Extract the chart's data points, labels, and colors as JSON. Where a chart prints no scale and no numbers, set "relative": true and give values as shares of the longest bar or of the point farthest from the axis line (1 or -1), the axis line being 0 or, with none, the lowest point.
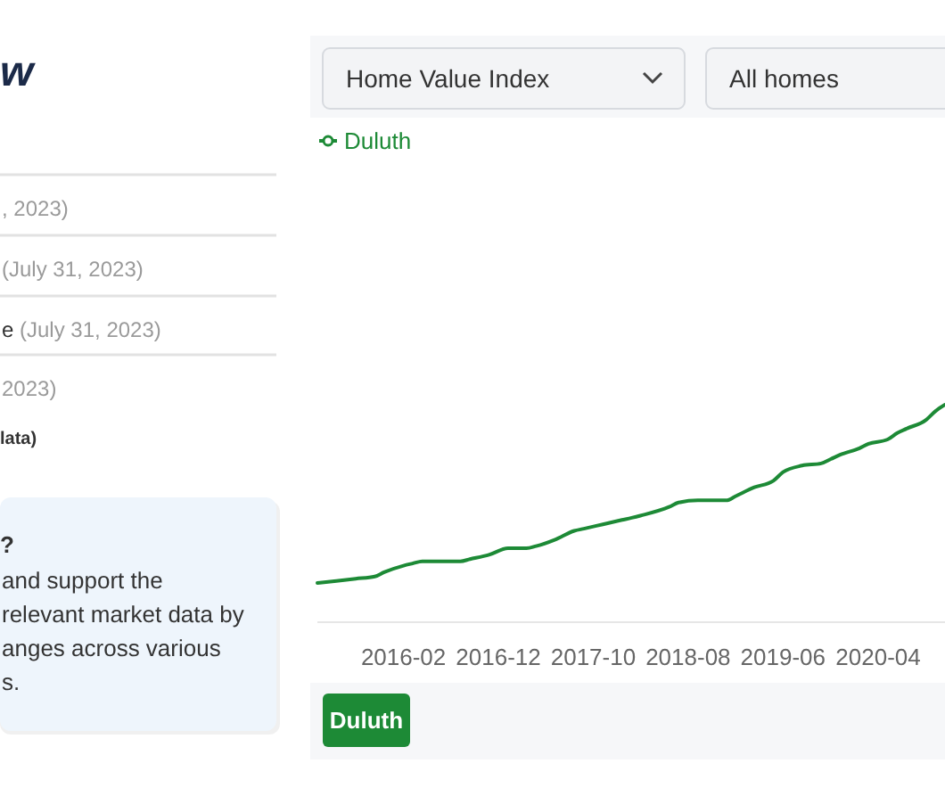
{
  "chart_data": [
    {
      "type": "other",
      "title": "w",
      "annotations": [
        ", 2023)",
        "(July 31, 2023)",
        "e (July 31, 2023)",
        "2023)",
        "lata)",
        "?",
        "and support the",
        "relevant market data by",
        "anges across various",
        "s."
      ]
    },
    {
      "type": "line",
      "relative": true,
      "x": [
        "2015-05",
        "2015-07",
        "2015-09",
        "2015-11",
        "2015-12",
        "2016-02",
        "2016-03",
        "2016-04",
        "2016-06",
        "2016-08",
        "2016-09",
        "2016-11",
        "2017-01",
        "2017-03",
        "2017-04",
        "2017-06",
        "2017-08",
        "2017-09",
        "2017-11",
        "2018-01",
        "2018-02",
        "2018-03",
        "2018-06",
        "2018-07",
        "2018-09",
        "2018-11",
        "2018-12",
        "2019-01",
        "2019-03",
        "2019-05",
        "2019-06",
        "2019-08",
        "2019-10",
        "2019-11",
        "2019-12",
        "2020-02",
        "2020-03",
        "2020-05",
        "2020-06",
        "2020-07",
        "2020-09",
        "2020-10",
        "2020-11"
      ],
      "series": [
        {
          "name": "Duluth",
          "color": "#1d8a36",
          "values": [
            0.18,
            0.19,
            0.2,
            0.21,
            0.23,
            0.26,
            0.27,
            0.28,
            0.28,
            0.28,
            0.29,
            0.31,
            0.34,
            0.34,
            0.35,
            0.38,
            0.42,
            0.43,
            0.45,
            0.47,
            0.48,
            0.49,
            0.53,
            0.55,
            0.56,
            0.56,
            0.56,
            0.58,
            0.62,
            0.65,
            0.69,
            0.72,
            0.73,
            0.75,
            0.77,
            0.8,
            0.82,
            0.84,
            0.87,
            0.89,
            0.93,
            0.97,
            1
          ]
        }
      ],
      "xlim": [
        "2015-05",
        "2020-11"
      ],
      "xticks": [
        "2016-02",
        "2016-12",
        "2017-10",
        "2018-08",
        "2019-06",
        "2020-04"
      ],
      "legend": "top left",
      "annotations": [
        "Home Value Index",
        "All homes"
      ]
    }
  ]
}
